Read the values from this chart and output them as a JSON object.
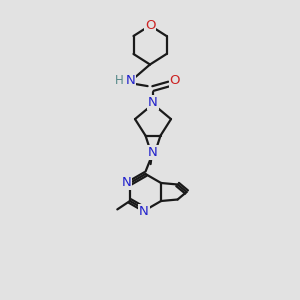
{
  "bg_color": "#e2e2e2",
  "bond_color": "#1a1a1a",
  "N_color": "#2222cc",
  "O_color": "#cc2222",
  "H_color": "#558888",
  "bond_width": 1.6,
  "font_size": 8.5,
  "fig_size": [
    3.0,
    3.0
  ],
  "dpi": 100,
  "xlim": [
    0,
    10
  ],
  "ylim": [
    0,
    10
  ]
}
